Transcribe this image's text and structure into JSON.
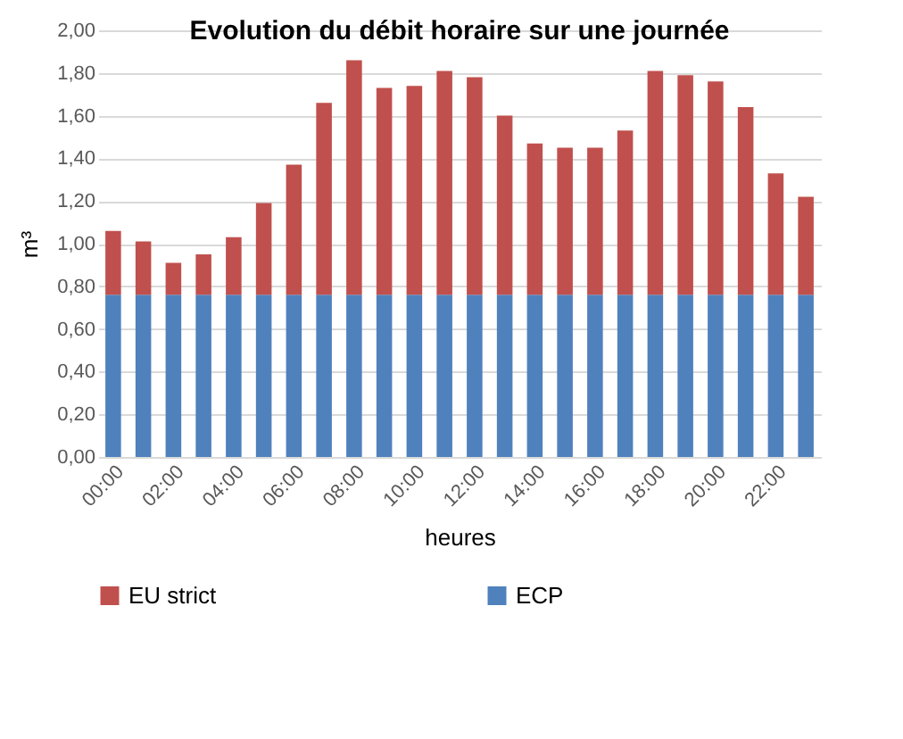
{
  "chart_data": {
    "type": "bar",
    "title": "Evolution du débit horaire sur une journée",
    "xlabel": "heures",
    "ylabel": "m³",
    "categories": [
      "00:00",
      null,
      "02:00",
      null,
      "04:00",
      null,
      "06:00",
      null,
      "08:00",
      null,
      "10:00",
      null,
      "12:00",
      null,
      "14:00",
      null,
      "16:00",
      null,
      "18:00",
      null,
      "20:00",
      null,
      "22:00",
      null
    ],
    "stacked": true,
    "series": [
      {
        "name": "ECP",
        "color": "#4f81bd",
        "values": [
          0.76,
          0.76,
          0.76,
          0.76,
          0.76,
          0.76,
          0.76,
          0.76,
          0.76,
          0.76,
          0.76,
          0.76,
          0.76,
          0.76,
          0.76,
          0.76,
          0.76,
          0.76,
          0.76,
          0.76,
          0.76,
          0.76,
          0.76,
          0.76
        ]
      },
      {
        "name": "EU strict",
        "color": "#c0504d",
        "values": [
          0.3,
          0.25,
          0.15,
          0.19,
          0.27,
          0.43,
          0.61,
          0.9,
          1.1,
          0.97,
          0.98,
          1.05,
          1.02,
          0.84,
          0.71,
          0.69,
          0.69,
          0.77,
          1.05,
          1.03,
          1.0,
          0.88,
          0.57,
          0.46
        ]
      }
    ],
    "ylim": [
      0,
      2
    ],
    "yticks": [
      {
        "value": 0,
        "label": "0,00"
      },
      {
        "value": 0.2,
        "label": "0,20"
      },
      {
        "value": 0.4,
        "label": "0,40"
      },
      {
        "value": 0.6,
        "label": "0,60"
      },
      {
        "value": 0.8,
        "label": "0,80"
      },
      {
        "value": 1,
        "label": "1,00"
      },
      {
        "value": 1.2,
        "label": "1,20"
      },
      {
        "value": 1.4,
        "label": "1,40"
      },
      {
        "value": 1.6,
        "label": "1,60"
      },
      {
        "value": 1.8,
        "label": "1,80"
      },
      {
        "value": 2,
        "label": "2,00"
      }
    ],
    "grid": "y",
    "legend": "bottom"
  }
}
